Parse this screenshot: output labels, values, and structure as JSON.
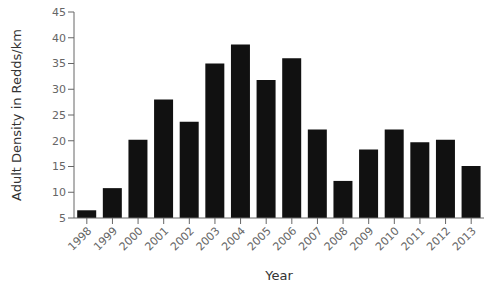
{
  "chart_data": {
    "type": "bar",
    "xlabel": "Year",
    "ylabel": "Adult Density in Redds/km",
    "categories": [
      "1998",
      "1999",
      "2000",
      "2001",
      "2002",
      "2003",
      "2004",
      "2005",
      "2006",
      "2007",
      "2008",
      "2009",
      "2010",
      "2011",
      "2012",
      "2013"
    ],
    "values": [
      6.5,
      10.8,
      20.2,
      28.0,
      23.7,
      35.0,
      38.7,
      31.8,
      36.0,
      22.2,
      12.2,
      18.3,
      22.2,
      19.7,
      20.2,
      15.1
    ],
    "color": "#111111",
    "ylim": [
      5,
      45
    ],
    "yticks": [
      5,
      10,
      15,
      20,
      25,
      30,
      35,
      40,
      45
    ],
    "grid": false
  }
}
